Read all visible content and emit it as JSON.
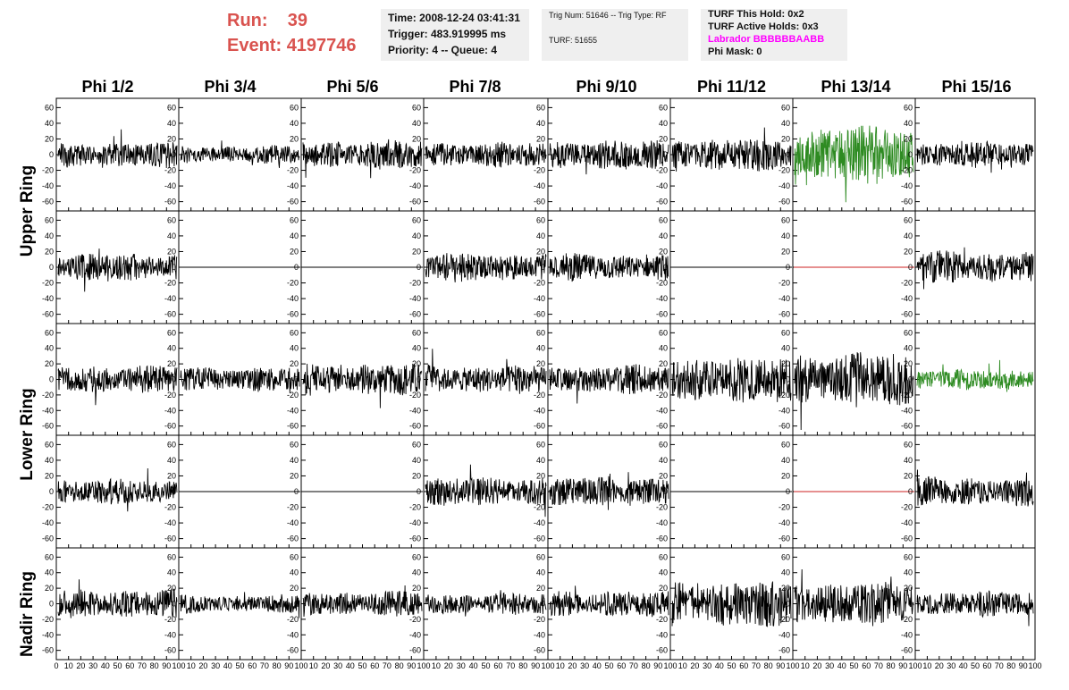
{
  "header": {
    "run_label": "Run:",
    "run_value": "39",
    "event_label": "Event:",
    "event_value": "4197746",
    "time": "Time: 2008-12-24 03:41:31",
    "trigger": "Trigger: 483.919995 ms",
    "priority": "Priority: 4 -- Queue: 4",
    "trig_num": "Trig Num: 51646 -- Trig Type: RF",
    "turf": "TURF: 51655",
    "turf_this_hold": "TURF This Hold: 0x2",
    "turf_active_holds": "TURF Active Holds: 0x3",
    "labrador": "Labrador BBBBBBAABB",
    "phi_mask": "Phi Mask: 0"
  },
  "colors": {
    "run_text": "#d9534f",
    "labrador_text": "#ff00ff",
    "trace_normal": "#000000",
    "trace_highlight": "#2e8b22",
    "trace_flat_red": "#cc2222",
    "panel_bg": "#efefef"
  },
  "chart_data": {
    "type": "line",
    "title": "",
    "columns": [
      "Phi 1/2",
      "Phi 3/4",
      "Phi 5/6",
      "Phi 7/8",
      "Phi 9/10",
      "Phi 11/12",
      "Phi 13/14",
      "Phi 15/16"
    ],
    "rows": [
      "Upper Ring",
      "Lower Ring",
      "Nadir Ring"
    ],
    "y_ticks": [
      60,
      40,
      20,
      0,
      -20,
      -40,
      -60
    ],
    "x_ticks": [
      0,
      10,
      20,
      30,
      40,
      50,
      60,
      70,
      80,
      90,
      100
    ],
    "xlim": [
      0,
      100
    ],
    "ylim": [
      -65,
      65
    ],
    "grid": false,
    "panels": [
      [
        {
          "amp": 14,
          "seed": 1,
          "color": "normal"
        },
        {
          "amp": 10,
          "seed": 2,
          "color": "normal"
        },
        {
          "amp": 16,
          "seed": 3,
          "color": "normal"
        },
        {
          "amp": 14,
          "seed": 4,
          "color": "normal"
        },
        {
          "amp": 16,
          "seed": 5,
          "color": "normal"
        },
        {
          "amp": 18,
          "seed": 6,
          "color": "normal"
        },
        {
          "amp": 32,
          "seed": 7,
          "color": "highlight"
        },
        {
          "amp": 14,
          "seed": 8,
          "color": "normal"
        }
      ],
      [
        {
          "amp": 15,
          "seed": 11,
          "color": "normal"
        },
        {
          "amp": 0,
          "seed": 12,
          "color": "normal"
        },
        {
          "amp": 0,
          "seed": 13,
          "color": "normal"
        },
        {
          "amp": 16,
          "seed": 14,
          "color": "normal"
        },
        {
          "amp": 15,
          "seed": 15,
          "color": "normal"
        },
        {
          "amp": 0,
          "seed": 16,
          "color": "normal"
        },
        {
          "amp": 0,
          "seed": 17,
          "color": "flat_red"
        },
        {
          "amp": 18,
          "seed": 18,
          "color": "normal"
        }
      ],
      [
        {
          "amp": 16,
          "seed": 21,
          "color": "normal"
        },
        {
          "amp": 14,
          "seed": 22,
          "color": "normal"
        },
        {
          "amp": 18,
          "seed": 23,
          "color": "normal"
        },
        {
          "amp": 16,
          "seed": 24,
          "color": "normal"
        },
        {
          "amp": 16,
          "seed": 25,
          "color": "normal"
        },
        {
          "amp": 26,
          "seed": 26,
          "color": "normal"
        },
        {
          "amp": 30,
          "seed": 27,
          "color": "normal"
        },
        {
          "amp": 12,
          "seed": 28,
          "color": "highlight"
        }
      ],
      [
        {
          "amp": 14,
          "seed": 31,
          "color": "normal"
        },
        {
          "amp": 0,
          "seed": 32,
          "color": "normal"
        },
        {
          "amp": 0,
          "seed": 33,
          "color": "normal"
        },
        {
          "amp": 16,
          "seed": 34,
          "color": "normal"
        },
        {
          "amp": 16,
          "seed": 35,
          "color": "normal"
        },
        {
          "amp": 0,
          "seed": 36,
          "color": "normal"
        },
        {
          "amp": 0,
          "seed": 37,
          "color": "flat_red"
        },
        {
          "amp": 16,
          "seed": 38,
          "color": "normal"
        }
      ],
      [
        {
          "amp": 16,
          "seed": 41,
          "color": "normal"
        },
        {
          "amp": 10,
          "seed": 42,
          "color": "normal"
        },
        {
          "amp": 14,
          "seed": 43,
          "color": "normal"
        },
        {
          "amp": 12,
          "seed": 44,
          "color": "normal"
        },
        {
          "amp": 15,
          "seed": 45,
          "color": "normal"
        },
        {
          "amp": 26,
          "seed": 46,
          "color": "normal"
        },
        {
          "amp": 24,
          "seed": 47,
          "color": "normal"
        },
        {
          "amp": 14,
          "seed": 48,
          "color": "normal"
        }
      ]
    ]
  }
}
